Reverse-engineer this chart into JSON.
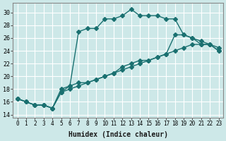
{
  "xlabel": "Humidex (Indice chaleur)",
  "ylabel": "",
  "background_color": "#cde8e8",
  "grid_color": "#ffffff",
  "line_color": "#1a7070",
  "xlim": [
    -0.5,
    23.5
  ],
  "ylim": [
    13.5,
    31.5
  ],
  "xticks": [
    0,
    1,
    2,
    3,
    4,
    5,
    6,
    7,
    8,
    9,
    10,
    11,
    12,
    13,
    14,
    15,
    16,
    17,
    18,
    19,
    20,
    21,
    22,
    23
  ],
  "yticks": [
    14,
    16,
    18,
    20,
    22,
    24,
    26,
    28,
    30
  ],
  "series1_x": [
    0,
    1,
    2,
    3,
    4,
    5,
    6,
    7,
    8,
    9,
    10,
    11,
    12,
    13,
    14,
    15,
    16,
    17,
    18,
    19,
    20,
    21,
    22,
    23
  ],
  "series1_y": [
    16.5,
    16.0,
    15.5,
    15.5,
    15.0,
    18.0,
    18.5,
    27.0,
    27.5,
    27.5,
    29.0,
    29.0,
    29.5,
    30.5,
    29.5,
    29.5,
    29.5,
    29.0,
    29.0,
    26.5,
    26.0,
    25.0,
    25.0,
    24.0
  ],
  "series2_x": [
    0,
    1,
    2,
    3,
    4,
    5,
    6,
    7,
    8,
    9,
    10,
    11,
    12,
    13,
    14,
    15,
    16,
    17,
    18,
    19,
    20,
    21,
    22,
    23
  ],
  "series2_y": [
    16.5,
    16.0,
    15.5,
    15.5,
    15.0,
    17.5,
    18.5,
    19.0,
    19.0,
    19.5,
    20.0,
    20.5,
    21.5,
    22.0,
    22.5,
    22.5,
    23.0,
    23.5,
    24.0,
    24.5,
    25.0,
    25.0,
    25.0,
    24.0
  ],
  "series3_x": [
    0,
    1,
    2,
    3,
    4,
    5,
    6,
    7,
    8,
    9,
    10,
    11,
    12,
    13,
    14,
    15,
    16,
    17,
    18,
    19,
    20,
    21,
    22,
    23
  ],
  "series3_y": [
    16.5,
    16.0,
    15.5,
    15.5,
    15.0,
    17.5,
    18.0,
    18.5,
    19.0,
    19.5,
    20.0,
    20.5,
    21.0,
    21.5,
    22.0,
    22.5,
    23.0,
    23.5,
    26.5,
    26.5,
    26.0,
    25.5,
    25.0,
    24.5
  ]
}
